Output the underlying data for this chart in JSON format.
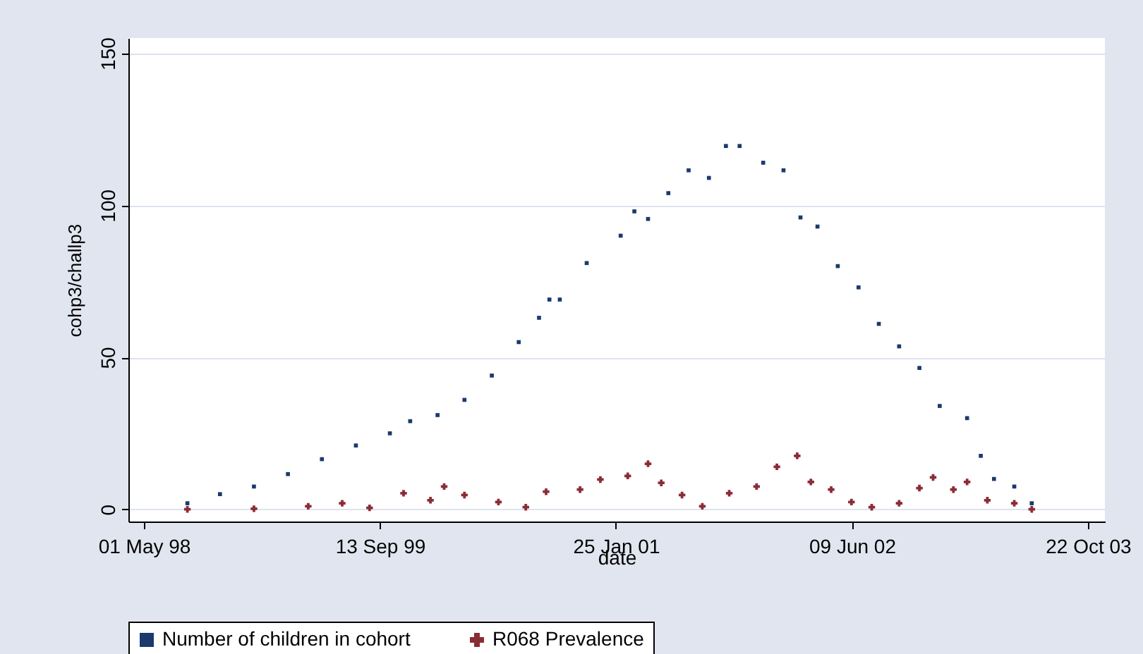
{
  "chart_data": {
    "type": "scatter",
    "xlabel": "date",
    "ylabel": "cohp3/challp3",
    "xlim": [
      "1998-03-29",
      "2003-11-27"
    ],
    "ylim": [
      -4,
      155
    ],
    "xticks": [
      {
        "value": "1998-05-01",
        "label": "01 May 98"
      },
      {
        "value": "1999-09-13",
        "label": "13 Sep 99"
      },
      {
        "value": "2001-01-25",
        "label": "25 Jan 01"
      },
      {
        "value": "2002-06-09",
        "label": "09 Jun 02"
      },
      {
        "value": "2003-10-22",
        "label": "22 Oct 03"
      }
    ],
    "yticks": [
      0,
      50,
      100,
      150
    ],
    "grid": "y",
    "legend": "bottom",
    "series": [
      {
        "name": "Number of children in cohort",
        "color": "#1a3a6e",
        "marker": "square",
        "x": [
          "1998-08-01",
          "1998-10-09",
          "1998-12-20",
          "1999-03-02",
          "1999-05-13",
          "1999-07-24",
          "1999-10-04",
          "1999-11-16",
          "2000-01-13",
          "2000-03-10",
          "2000-05-07",
          "2000-07-03",
          "2000-08-15",
          "2000-09-06",
          "2000-09-28",
          "2000-11-24",
          "2001-02-04",
          "2001-03-05",
          "2001-04-03",
          "2001-05-16",
          "2001-06-28",
          "2001-08-10",
          "2001-09-15",
          "2001-10-14",
          "2001-12-03",
          "2002-01-15",
          "2002-02-20",
          "2002-03-28",
          "2002-05-10",
          "2002-06-23",
          "2002-08-05",
          "2002-09-17",
          "2002-10-30",
          "2002-12-12",
          "2003-02-08",
          "2003-03-09",
          "2003-04-06",
          "2003-05-19",
          "2003-06-25"
        ],
        "values": [
          2,
          5,
          7.5,
          11.6,
          16.5,
          21,
          25,
          29,
          31,
          36,
          44,
          55,
          63,
          69,
          69,
          81,
          90,
          98,
          95.5,
          104,
          111.5,
          109,
          119.5,
          119.5,
          114,
          111.5,
          96,
          93,
          80,
          73,
          61,
          53.6,
          46.5,
          34,
          30,
          17.6,
          10,
          7.5,
          2
        ]
      },
      {
        "name": "R068 Prevalence",
        "color": "#8b2c35",
        "marker": "cross",
        "x": [
          "1998-08-01",
          "1998-12-20",
          "1999-04-14",
          "1999-06-25",
          "1999-08-22",
          "1999-11-02",
          "1999-12-29",
          "2000-01-27",
          "2000-03-10",
          "2000-05-21",
          "2000-07-18",
          "2000-08-30",
          "2000-11-10",
          "2000-12-23",
          "2001-02-19",
          "2001-04-03",
          "2001-05-01",
          "2001-06-14",
          "2001-07-27",
          "2001-09-22",
          "2001-11-19",
          "2002-01-01",
          "2002-02-13",
          "2002-03-14",
          "2002-04-26",
          "2002-06-08",
          "2002-07-21",
          "2002-09-17",
          "2002-10-30",
          "2002-11-28",
          "2003-01-10",
          "2003-02-08",
          "2003-03-23",
          "2003-05-19",
          "2003-06-25"
        ],
        "values": [
          0,
          0.2,
          1,
          2,
          0.5,
          5.3,
          3,
          7.5,
          4.7,
          2.4,
          0.7,
          5.8,
          6.5,
          9.8,
          11,
          15,
          8.7,
          4.7,
          1,
          5.3,
          7.5,
          14,
          17.6,
          9,
          6.5,
          2.4,
          0.7,
          2,
          7,
          10.5,
          6.5,
          9,
          3,
          2,
          0
        ]
      }
    ]
  }
}
